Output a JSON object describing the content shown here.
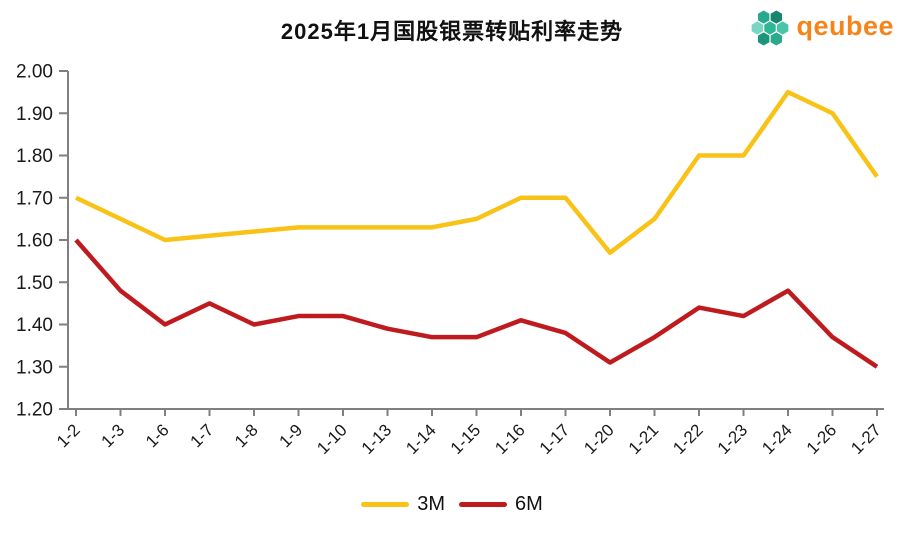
{
  "page": {
    "background": "#ffffff"
  },
  "header": {
    "title": "2025年1月国股银票转贴利率走势",
    "logo": {
      "text": "qeubee",
      "text_color": "#F5851B",
      "icon_colors": [
        "#2FB795",
        "#4AC4A8",
        "#7AD6C2",
        "#2AA98C",
        "#1E957A",
        "#17866D",
        "#27A98D"
      ]
    }
  },
  "chart_data": {
    "type": "line",
    "title": "2025年1月国股银票转贴利率走势",
    "categories": [
      "1-2",
      "1-3",
      "1-6",
      "1-7",
      "1-8",
      "1-9",
      "1-10",
      "1-13",
      "1-14",
      "1-15",
      "1-16",
      "1-17",
      "1-20",
      "1-21",
      "1-22",
      "1-23",
      "1-24",
      "1-26",
      "1-27"
    ],
    "series": [
      {
        "name": "3M",
        "color": "#F9C216",
        "values": [
          1.7,
          1.65,
          1.6,
          1.61,
          1.62,
          1.63,
          1.63,
          1.63,
          1.63,
          1.65,
          1.7,
          1.7,
          1.57,
          1.65,
          1.8,
          1.8,
          1.95,
          1.9,
          1.75
        ]
      },
      {
        "name": "6M",
        "color": "#BF1A1E",
        "values": [
          1.6,
          1.48,
          1.4,
          1.45,
          1.4,
          1.42,
          1.42,
          1.39,
          1.37,
          1.37,
          1.41,
          1.38,
          1.31,
          1.37,
          1.44,
          1.42,
          1.48,
          1.37,
          1.3
        ]
      }
    ],
    "xlabel": "",
    "ylabel": "",
    "ylim": [
      1.2,
      2.0
    ],
    "ytick_step": 0.1,
    "ytick_decimals": 2,
    "grid": false,
    "legend_position": "bottom",
    "axis_color": "#7F7F7F",
    "label_color": "#1A1A1A",
    "x_tick_labels_rotation_deg": -45
  },
  "legend": {
    "items": [
      {
        "label": "3M",
        "color": "#F9C216"
      },
      {
        "label": "6M",
        "color": "#BF1A1E"
      }
    ]
  }
}
